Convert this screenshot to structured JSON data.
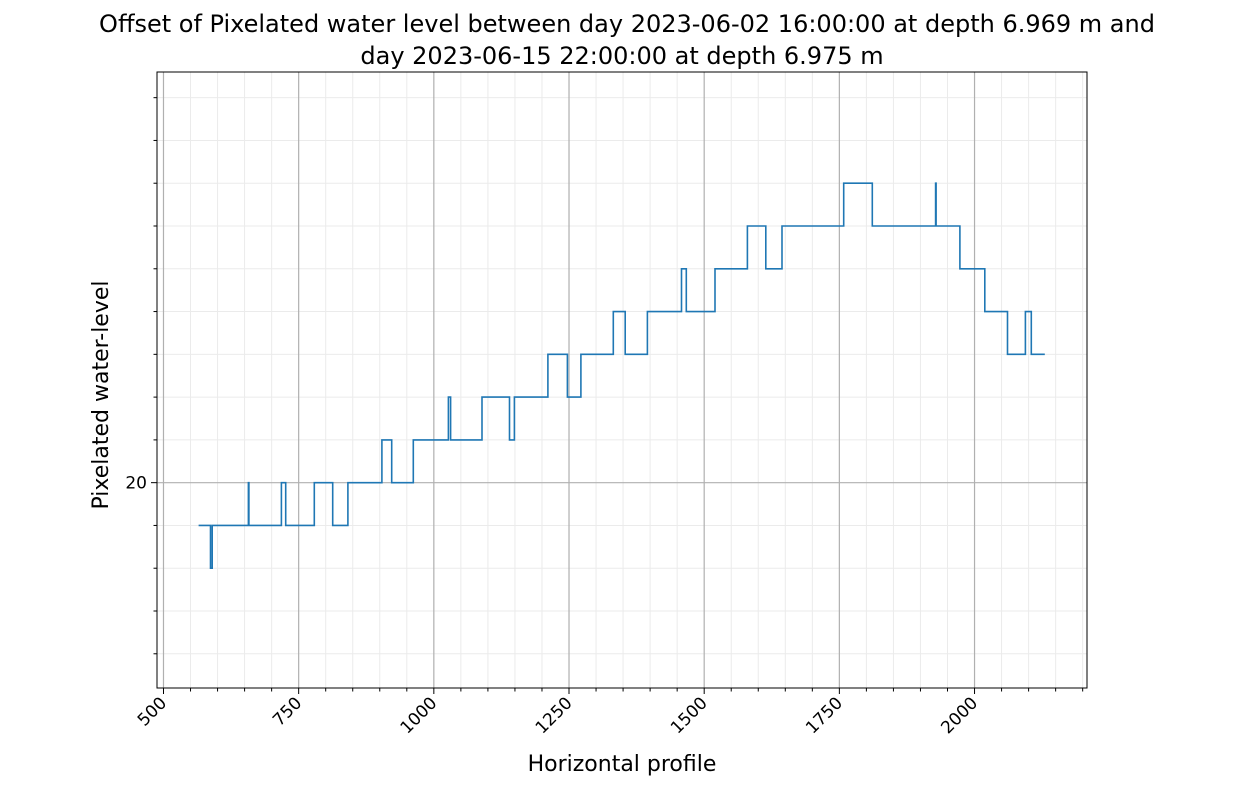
{
  "chart_data": {
    "type": "line",
    "title_lines": [
      "Offset of Pixelated water level between day 2023-06-02 16:00:00 at depth 6.969 m and",
      "day 2023-06-15 22:00:00 at depth 6.975 m"
    ],
    "xlabel": "Horizontal profile",
    "ylabel": "Pixelated water-level",
    "xlim": [
      488,
      2208
    ],
    "ylim": [
      17.6,
      24.8
    ],
    "x_major_ticks": [
      500,
      750,
      1000,
      1250,
      1500,
      1750,
      2000
    ],
    "x_tick_labels": [
      "500",
      "750",
      "1000",
      "1250",
      "1500",
      "1750",
      "2000"
    ],
    "x_minor_step": 50,
    "y_major_ticks": [
      20
    ],
    "y_tick_labels": [
      "20"
    ],
    "y_minor_ticks": [
      18,
      18.5,
      19,
      19.5,
      20.5,
      21,
      21.5,
      22,
      22.5,
      23,
      23.5,
      24,
      24.5
    ],
    "grid": true,
    "line_color": "#1f77b4",
    "series": [
      {
        "x": [
          565,
          587,
          587,
          590,
          590,
          593,
          593,
          657,
          657,
          658,
          658,
          718,
          718,
          726,
          726,
          779,
          779,
          813,
          813,
          841,
          841,
          904,
          904,
          922,
          922,
          962,
          962,
          1027,
          1027,
          1031,
          1031,
          1089,
          1089,
          1140,
          1140,
          1149,
          1149,
          1211,
          1211,
          1247,
          1247,
          1272,
          1272,
          1332,
          1332,
          1354,
          1354,
          1395,
          1395,
          1458,
          1458,
          1467,
          1467,
          1520,
          1520,
          1580,
          1580,
          1614,
          1614,
          1644,
          1644,
          1758,
          1758,
          1811,
          1811,
          1928,
          1928,
          1929,
          1929,
          1973,
          1973,
          2019,
          2019,
          2061,
          2061,
          2094,
          2094,
          2105,
          2105,
          2130
        ],
        "y": [
          19.5,
          19.5,
          19.0,
          19.0,
          19.5,
          19.5,
          19.5,
          19.5,
          20.0,
          20.0,
          19.5,
          19.5,
          20.0,
          20.0,
          19.5,
          19.5,
          20.0,
          20.0,
          19.5,
          19.5,
          20.0,
          20.0,
          20.5,
          20.5,
          20.0,
          20.0,
          20.5,
          20.5,
          21.0,
          21.0,
          20.5,
          20.5,
          21.0,
          21.0,
          20.5,
          20.5,
          21.0,
          21.0,
          21.5,
          21.5,
          21.0,
          21.0,
          21.5,
          21.5,
          22.0,
          22.0,
          21.5,
          21.5,
          22.0,
          22.0,
          22.5,
          22.5,
          22.0,
          22.0,
          22.5,
          22.5,
          23.0,
          23.0,
          22.5,
          22.5,
          23.0,
          23.0,
          23.5,
          23.5,
          23.0,
          23.0,
          23.5,
          23.5,
          23.0,
          23.0,
          22.5,
          22.5,
          22.0,
          22.0,
          21.5,
          21.5,
          22.0,
          22.0,
          21.5,
          21.5
        ]
      }
    ]
  }
}
